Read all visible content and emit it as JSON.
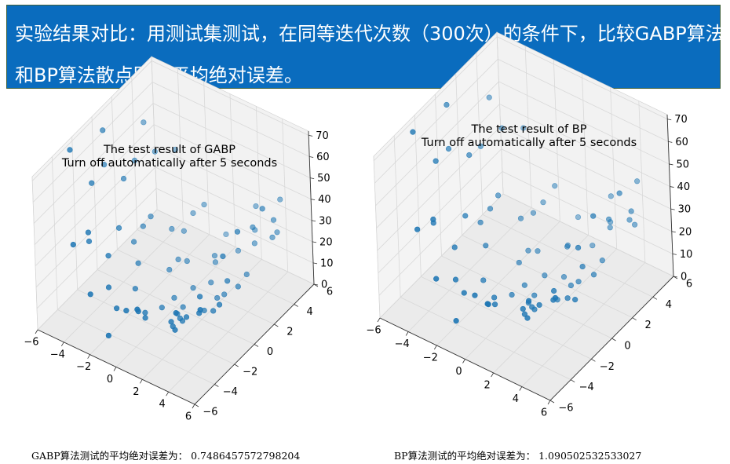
{
  "header": {
    "line1": "实验结果对比：用测试集测试，在同等迭代次数（300次）的条件下，比较GABP算法",
    "line2": "和BP算法散点图和平均绝对误差。"
  },
  "captions": [
    {
      "label": "GABP算法测试的平均绝对误差为：",
      "value": "0.7486457572798204"
    },
    {
      "label": "BP算法测试的平均绝对误差为：",
      "value": "1.090502532533027"
    }
  ],
  "colors": {
    "banner": "#0a6cbe",
    "points": "#1f77b4",
    "pane": "#f2f2f2",
    "grid": "#d8d8d8"
  },
  "chart_data": [
    {
      "type": "scatter",
      "projection": "3d",
      "title": "The test result of GABP\nTurn off automatically after 5 seconds",
      "xlim": [
        -6,
        6
      ],
      "ylim": [
        -6,
        6
      ],
      "zlim": [
        0,
        72
      ],
      "xticks": [
        -6,
        -4,
        -2,
        0,
        2,
        4,
        6
      ],
      "yticks": [
        -6,
        -4,
        -2,
        0,
        2,
        4,
        6
      ],
      "zticks": [
        0,
        10,
        20,
        30,
        40,
        50,
        60,
        70
      ],
      "grid": true,
      "x": [
        -5.8,
        -5.2,
        -5.6,
        -5.0,
        -4.8,
        -4.6,
        -4.5,
        -4.2,
        -4.0,
        -3.8,
        -3.6,
        -3.5,
        -3.3,
        -3.0,
        -2.8,
        -2.5,
        -2.3,
        -2.0,
        -1.8,
        -1.6,
        -1.3,
        -1.0,
        -0.8,
        -0.5,
        -0.3,
        0.0,
        0.2,
        0.5,
        0.8,
        1.0,
        1.2,
        1.5,
        1.8,
        2.0,
        2.2,
        2.5,
        2.8,
        3.0,
        3.2,
        3.5,
        3.7,
        4.0,
        4.2,
        4.5,
        4.8,
        5.0,
        5.3,
        5.5,
        5.8,
        5.0,
        4.6,
        4.2,
        3.5,
        2.6,
        1.6,
        0.6,
        -0.6,
        -1.6,
        -2.6,
        -3.6,
        1.8,
        -2.2,
        0.4,
        -4.8,
        3.0,
        -0.5,
        2.6,
        5.6,
        -3.8,
        0.6,
        -1.2,
        4.4,
        5.2,
        -5.5
      ],
      "y": [
        -2.5,
        4.0,
        0.5,
        -1.5,
        2.5,
        -4.0,
        1.0,
        -3.0,
        3.5,
        -0.5,
        5.0,
        -2.0,
        2.0,
        -4.5,
        0.0,
        3.0,
        -1.0,
        4.5,
        -3.5,
        1.5,
        -5.0,
        2.5,
        -2.0,
        0.5,
        5.5,
        -3.0,
        1.5,
        -0.5,
        3.0,
        -5.0,
        2.0,
        -1.5,
        4.0,
        -3.0,
        0.0,
        5.0,
        -2.5,
        1.0,
        -4.0,
        3.5,
        -1.0,
        2.0,
        -3.0,
        0.5,
        4.5,
        -2.0,
        3.0,
        -4.5,
        1.5,
        0.0,
        -1.0,
        2.5,
        -2.0,
        0.8,
        -1.4,
        3.2,
        -0.6,
        2.4,
        -3.2,
        1.6,
        -2.6,
        3.8,
        0.2,
        -2.2,
        4.2,
        -4.2,
        -3.4,
        2.8,
        0.9,
        -4.4,
        4.6,
        -0.4,
        3.6,
        0.4
      ],
      "z": [
        68.7,
        52.8,
        64.4,
        50.7,
        43.1,
        34.7,
        42.5,
        36.9,
        44.9,
        28.4,
        40.0,
        23.3,
        23.5,
        18.4,
        12.4,
        15.3,
        6.6,
        17.1,
        10.6,
        5.8,
        6.3,
        6.9,
        4.4,
        0.5,
        7.4,
        9.0,
        2.5,
        0.6,
        9.3,
        25.3,
        5.6,
        6.1,
        12.9,
        13.0,
        4.8,
        31.2,
        15.2,
        10.0,
        25.4,
        23.7,
        13.7,
        17.6,
        23.5,
        20.4,
        43.4,
        25.1,
        34.1,
        35.9,
        56.1,
        50.0,
        42.0,
        38.0,
        24.5,
        8.1,
        4.7,
        10.8,
        0.8,
        6.4,
        16.7,
        19.9,
        8.4,
        11.4,
        0.2,
        27.2,
        25.2,
        16.6,
        12.8,
        44.1,
        15.3,
        20.4,
        23.0,
        27.0,
        33.4,
        49.0
      ]
    },
    {
      "type": "scatter",
      "projection": "3d",
      "title": "The test result of BP\nTurn off automatically after 5 seconds",
      "xlim": [
        -6,
        6
      ],
      "ylim": [
        -6,
        6
      ],
      "zlim": [
        0,
        72
      ],
      "xticks": [
        -6,
        -4,
        -2,
        0,
        2,
        4,
        6
      ],
      "yticks": [
        -6,
        -4,
        -2,
        0,
        2,
        4,
        6
      ],
      "zticks": [
        0,
        10,
        20,
        30,
        40,
        50,
        60,
        70
      ],
      "grid": true,
      "x": [
        -5.8,
        -5.2,
        -5.6,
        -5.0,
        -4.8,
        -4.6,
        -4.5,
        -4.2,
        -4.0,
        -3.8,
        -3.6,
        -3.5,
        -3.3,
        -3.0,
        -2.8,
        -2.5,
        -2.3,
        -2.0,
        -1.8,
        -1.6,
        -1.3,
        -1.0,
        -0.8,
        -0.5,
        -0.3,
        0.0,
        0.2,
        0.5,
        0.8,
        1.0,
        1.2,
        1.5,
        1.8,
        2.0,
        2.2,
        2.5,
        2.8,
        3.0,
        3.2,
        3.5,
        3.7,
        4.0,
        4.2,
        4.5,
        4.8,
        5.0,
        5.3,
        5.5,
        5.8,
        5.0,
        4.6,
        4.2,
        3.5,
        2.6,
        1.6,
        0.6,
        -0.6,
        -1.6,
        -2.6,
        -3.6,
        1.8,
        -2.2,
        0.4,
        -4.8,
        3.0,
        -0.5,
        2.6,
        5.6,
        -3.8,
        0.6,
        -1.2,
        4.4,
        5.2,
        -5.5
      ],
      "y": [
        -2.5,
        4.0,
        0.5,
        -1.5,
        2.5,
        -4.0,
        1.0,
        -3.0,
        3.5,
        -0.5,
        5.0,
        -2.0,
        2.0,
        -4.5,
        0.0,
        3.0,
        -1.0,
        4.5,
        -3.5,
        1.5,
        -5.0,
        2.5,
        -2.0,
        0.5,
        5.5,
        -3.0,
        1.5,
        -0.5,
        3.0,
        -5.0,
        2.0,
        -1.5,
        4.0,
        -3.0,
        0.0,
        5.0,
        -2.5,
        1.0,
        -4.0,
        3.5,
        -1.0,
        2.0,
        -3.0,
        0.5,
        4.5,
        -2.0,
        3.0,
        -4.5,
        1.5,
        0.0,
        -1.0,
        2.5,
        -2.0,
        0.8,
        -1.4,
        3.2,
        -0.6,
        2.4,
        -3.2,
        1.6,
        -2.6,
        3.8,
        0.2,
        -2.2,
        4.2,
        -4.2,
        -3.4,
        2.8,
        0.9,
        -4.4,
        4.6,
        -0.4,
        3.6,
        0.4
      ],
      "z": [
        67.3,
        54.6,
        66.2,
        52.2,
        41.0,
        34.5,
        44.9,
        35.6,
        46.9,
        26.9,
        41.3,
        20.7,
        26.0,
        19.7,
        14.4,
        13.6,
        5.1,
        15.4,
        12.5,
        3.6,
        8.5,
        6.0,
        6.6,
        1.5,
        9.4,
        10.6,
        3.4,
        1.3,
        11.7,
        23.1,
        3.5,
        7.1,
        10.1,
        14.7,
        5.6,
        29.6,
        16.6,
        11.5,
        26.5,
        25.6,
        15.5,
        19.4,
        25.4,
        21.5,
        45.6,
        23.4,
        36.8,
        37.2,
        57.1,
        51.4,
        40.7,
        36.0,
        22.7,
        9.5,
        5.9,
        9.6,
        2.0,
        4.8,
        14.6,
        21.0,
        9.9,
        13.3,
        1.1,
        28.5,
        23.3,
        18.6,
        14.3,
        42.5,
        17.5,
        18.9,
        24.7,
        28.9,
        31.6,
        47.4
      ]
    }
  ]
}
